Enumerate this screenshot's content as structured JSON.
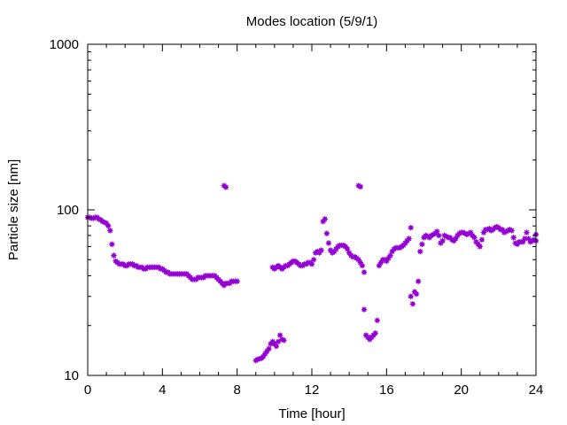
{
  "chart_data": {
    "type": "scatter",
    "title": "Modes location (5/9/1)",
    "xlabel": "Time [hour]",
    "ylabel": "Particle size [nm]",
    "xlim": [
      0,
      24
    ],
    "ylim": [
      10,
      1000
    ],
    "y_scale": "log",
    "x_ticks": [
      0,
      4,
      8,
      12,
      16,
      20,
      24
    ],
    "x_tick_labels": [
      "0",
      "4",
      "8",
      "12",
      "16",
      "20",
      "24"
    ],
    "y_ticks": [
      10,
      100,
      1000
    ],
    "y_tick_labels": [
      "10",
      "100",
      "1000"
    ],
    "grid": false,
    "legend": "none",
    "marker_color": "#9400d3",
    "series": [
      {
        "points": [
          [
            0.0,
            90
          ],
          [
            0.1,
            90
          ],
          [
            0.2,
            89
          ],
          [
            0.3,
            89
          ],
          [
            0.4,
            90
          ],
          [
            0.5,
            90
          ],
          [
            0.6,
            88
          ],
          [
            0.7,
            87
          ],
          [
            0.8,
            85
          ],
          [
            0.9,
            84
          ],
          [
            1.0,
            83
          ],
          [
            1.1,
            80
          ],
          [
            1.2,
            75
          ],
          [
            1.3,
            62
          ],
          [
            1.4,
            53
          ],
          [
            1.5,
            49
          ],
          [
            1.6,
            48
          ],
          [
            1.7,
            47
          ],
          [
            1.8,
            47
          ],
          [
            1.9,
            47
          ],
          [
            2.0,
            46
          ],
          [
            2.1,
            46
          ],
          [
            2.2,
            47
          ],
          [
            2.3,
            47
          ],
          [
            2.4,
            47
          ],
          [
            2.5,
            46
          ],
          [
            2.6,
            46
          ],
          [
            2.7,
            45
          ],
          [
            2.8,
            45
          ],
          [
            2.9,
            45
          ],
          [
            3.0,
            44
          ],
          [
            3.1,
            44
          ],
          [
            3.2,
            45
          ],
          [
            3.3,
            45
          ],
          [
            3.4,
            45
          ],
          [
            3.5,
            45
          ],
          [
            3.6,
            45
          ],
          [
            3.7,
            45
          ],
          [
            3.8,
            45
          ],
          [
            3.9,
            44
          ],
          [
            4.0,
            44
          ],
          [
            4.1,
            43
          ],
          [
            4.2,
            42
          ],
          [
            4.3,
            42
          ],
          [
            4.4,
            41
          ],
          [
            4.5,
            41
          ],
          [
            4.6,
            41
          ],
          [
            4.7,
            41
          ],
          [
            4.8,
            41
          ],
          [
            4.9,
            41
          ],
          [
            5.0,
            41
          ],
          [
            5.1,
            41
          ],
          [
            5.2,
            41
          ],
          [
            5.3,
            41
          ],
          [
            5.4,
            40
          ],
          [
            5.5,
            39
          ],
          [
            5.6,
            38
          ],
          [
            5.7,
            38
          ],
          [
            5.8,
            38
          ],
          [
            5.9,
            39
          ],
          [
            6.0,
            39
          ],
          [
            6.1,
            39
          ],
          [
            6.2,
            39
          ],
          [
            6.3,
            40
          ],
          [
            6.4,
            40
          ],
          [
            6.5,
            40
          ],
          [
            6.6,
            40
          ],
          [
            6.7,
            40
          ],
          [
            6.8,
            40
          ],
          [
            6.9,
            39
          ],
          [
            7.0,
            38
          ],
          [
            7.1,
            37
          ],
          [
            7.2,
            36
          ],
          [
            7.3,
            35
          ],
          [
            7.4,
            36
          ],
          [
            7.5,
            36
          ],
          [
            7.6,
            36
          ],
          [
            7.7,
            37
          ],
          [
            7.8,
            37
          ],
          [
            7.9,
            37
          ],
          [
            8.0,
            37
          ],
          [
            7.3,
            140
          ],
          [
            7.4,
            137
          ],
          [
            9.0,
            12.3
          ],
          [
            9.1,
            12.5
          ],
          [
            9.2,
            12.6
          ],
          [
            9.3,
            12.7
          ],
          [
            9.4,
            13
          ],
          [
            9.5,
            13.5
          ],
          [
            9.6,
            14
          ],
          [
            9.7,
            14.5
          ],
          [
            9.8,
            15.5
          ],
          [
            9.9,
            16
          ],
          [
            10.0,
            15.5
          ],
          [
            10.1,
            15
          ],
          [
            10.2,
            16
          ],
          [
            10.3,
            17.5
          ],
          [
            10.4,
            16.5
          ],
          [
            10.5,
            16.3
          ],
          [
            9.9,
            45
          ],
          [
            10.0,
            44
          ],
          [
            10.1,
            45
          ],
          [
            10.2,
            46
          ],
          [
            10.3,
            45
          ],
          [
            10.4,
            44
          ],
          [
            10.5,
            45
          ],
          [
            10.6,
            46
          ],
          [
            10.7,
            46
          ],
          [
            10.8,
            47
          ],
          [
            10.9,
            48
          ],
          [
            11.0,
            49
          ],
          [
            11.1,
            49
          ],
          [
            11.2,
            48
          ],
          [
            11.3,
            47
          ],
          [
            11.4,
            46
          ],
          [
            11.5,
            46
          ],
          [
            11.6,
            47
          ],
          [
            11.7,
            47
          ],
          [
            11.8,
            48
          ],
          [
            11.9,
            48
          ],
          [
            12.0,
            47
          ],
          [
            12.1,
            50
          ],
          [
            12.2,
            55
          ],
          [
            12.3,
            56
          ],
          [
            12.4,
            55
          ],
          [
            12.5,
            57
          ],
          [
            12.6,
            85
          ],
          [
            12.7,
            88
          ],
          [
            12.8,
            72
          ],
          [
            12.9,
            63
          ],
          [
            13.0,
            57
          ],
          [
            13.1,
            55
          ],
          [
            13.2,
            56
          ],
          [
            13.3,
            58
          ],
          [
            13.4,
            60
          ],
          [
            13.5,
            61
          ],
          [
            13.6,
            61
          ],
          [
            13.7,
            61
          ],
          [
            13.8,
            60
          ],
          [
            13.9,
            58
          ],
          [
            14.0,
            55
          ],
          [
            14.1,
            53
          ],
          [
            14.2,
            52
          ],
          [
            14.3,
            52
          ],
          [
            14.4,
            51
          ],
          [
            14.5,
            50
          ],
          [
            14.6,
            48
          ],
          [
            14.7,
            46
          ],
          [
            14.8,
            42
          ],
          [
            14.5,
            140
          ],
          [
            14.6,
            138
          ],
          [
            14.8,
            25
          ],
          [
            14.9,
            17.5
          ],
          [
            15.0,
            17
          ],
          [
            15.1,
            16.5
          ],
          [
            15.2,
            17
          ],
          [
            15.3,
            17.5
          ],
          [
            15.4,
            18
          ],
          [
            15.5,
            21.5
          ],
          [
            15.6,
            46
          ],
          [
            15.7,
            48
          ],
          [
            15.8,
            50
          ],
          [
            15.9,
            50
          ],
          [
            16.0,
            49
          ],
          [
            16.1,
            51
          ],
          [
            16.2,
            53
          ],
          [
            16.3,
            56
          ],
          [
            16.4,
            58
          ],
          [
            16.5,
            59
          ],
          [
            16.6,
            59
          ],
          [
            16.7,
            59
          ],
          [
            16.8,
            60
          ],
          [
            16.9,
            61
          ],
          [
            17.0,
            63
          ],
          [
            17.1,
            65
          ],
          [
            17.2,
            67
          ],
          [
            17.3,
            78
          ],
          [
            17.3,
            30
          ],
          [
            17.4,
            27
          ],
          [
            17.5,
            32
          ],
          [
            17.6,
            31
          ],
          [
            17.7,
            37
          ],
          [
            17.8,
            56
          ],
          [
            17.9,
            62
          ],
          [
            18.0,
            68
          ],
          [
            18.1,
            70
          ],
          [
            18.2,
            69
          ],
          [
            18.3,
            68
          ],
          [
            18.4,
            70
          ],
          [
            18.5,
            71
          ],
          [
            18.6,
            72
          ],
          [
            18.7,
            74
          ],
          [
            18.8,
            70
          ],
          [
            18.9,
            63
          ],
          [
            19.0,
            65
          ],
          [
            19.1,
            70
          ],
          [
            19.2,
            69
          ],
          [
            19.3,
            68
          ],
          [
            19.4,
            68
          ],
          [
            19.5,
            66
          ],
          [
            19.6,
            65
          ],
          [
            19.7,
            67
          ],
          [
            19.8,
            70
          ],
          [
            19.9,
            72
          ],
          [
            20.0,
            73
          ],
          [
            20.1,
            73
          ],
          [
            20.2,
            72
          ],
          [
            20.3,
            71
          ],
          [
            20.4,
            72
          ],
          [
            20.5,
            73
          ],
          [
            20.6,
            70
          ],
          [
            20.7,
            68
          ],
          [
            20.8,
            64
          ],
          [
            20.9,
            62
          ],
          [
            21.0,
            60
          ],
          [
            21.1,
            66
          ],
          [
            21.2,
            73
          ],
          [
            21.3,
            76
          ],
          [
            21.4,
            76
          ],
          [
            21.5,
            77
          ],
          [
            21.6,
            75
          ],
          [
            21.7,
            76
          ],
          [
            21.8,
            78
          ],
          [
            21.9,
            79
          ],
          [
            22.0,
            78
          ],
          [
            22.1,
            76
          ],
          [
            22.2,
            76
          ],
          [
            22.3,
            73
          ],
          [
            22.4,
            74
          ],
          [
            22.5,
            75
          ],
          [
            22.6,
            76
          ],
          [
            22.7,
            75
          ],
          [
            22.8,
            68
          ],
          [
            22.9,
            63
          ],
          [
            23.0,
            62
          ],
          [
            23.1,
            64
          ],
          [
            23.2,
            64
          ],
          [
            23.3,
            64
          ],
          [
            23.4,
            67
          ],
          [
            23.5,
            73
          ],
          [
            23.6,
            67
          ],
          [
            23.7,
            64
          ],
          [
            23.8,
            65
          ],
          [
            23.9,
            66
          ],
          [
            24.0,
            71
          ],
          [
            24.0,
            65
          ]
        ]
      }
    ]
  }
}
